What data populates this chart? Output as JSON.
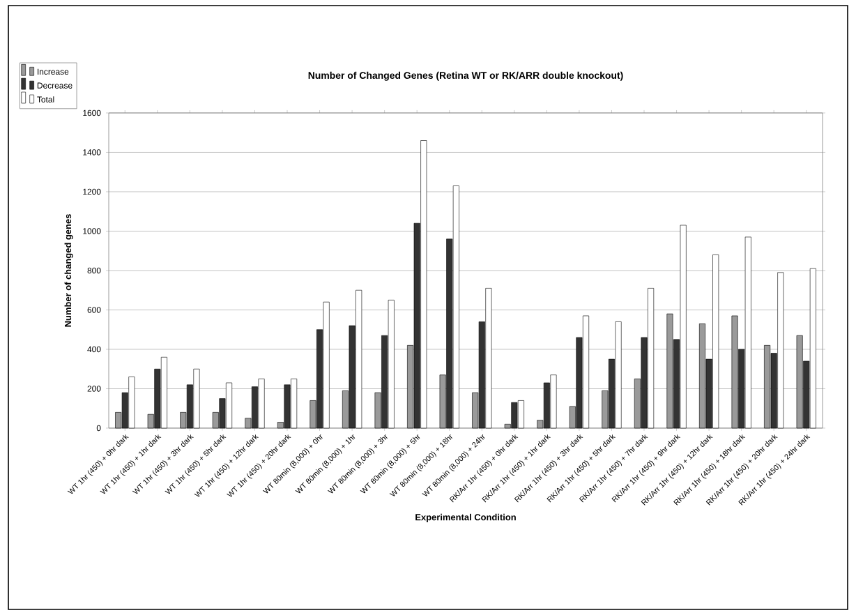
{
  "chart_data": {
    "type": "bar",
    "title": "Number of Changed Genes (Retina WT or RK/ARR double knockout)",
    "xlabel": "Experimental Condition",
    "ylabel": "Number of changed genes",
    "categories": [
      "WT 1hr (450) + 0hr dark",
      "WT 1hr (450) + 1hr dark",
      "WT 1hr (450) + 3hr dark",
      "WT 1hr (450) + 5hr dark",
      "WT 1hr (450) + 12hr dark",
      "WT 1hr (450) + 20hr dark",
      "WT 80min (8,000) + 0hr",
      "WT 80min (8,000) + 1hr",
      "WT 80min (8,000) + 3hr",
      "WT 80min (8,000) + 5hr",
      "WT 80min (8,000) + 18hr",
      "WT 80min (8,000) + 24hr",
      "RK/Arr 1hr (450) + 0hr dark",
      "RK/Arr 1hr (450) + 1hr dark",
      "RK/Arr 1hr (450) + 3hr dark",
      "RK/Arr 1hr (450) + 5hr dark",
      "RK/Arr 1hr (450) + 7hr dark",
      "RK/Arr 1hr (450) + 9hr dark",
      "RK/Arr 1hr (450) + 12hr dark",
      "RK/Arr 1hr (450) + 18hr dark",
      "RK/Arr 1hr (450) + 20hr dark",
      "RK/Arr 1hr (450) + 24hr dark"
    ],
    "series": [
      {
        "name": "Increase",
        "color": "#9a9a9a",
        "values": [
          80,
          70,
          80,
          80,
          50,
          30,
          140,
          190,
          180,
          420,
          270,
          180,
          20,
          40,
          110,
          190,
          250,
          580,
          530,
          570,
          420,
          470
        ]
      },
      {
        "name": "Decrease",
        "color": "#333333",
        "values": [
          180,
          300,
          220,
          150,
          210,
          220,
          500,
          520,
          470,
          1040,
          960,
          540,
          130,
          230,
          460,
          350,
          460,
          450,
          350,
          400,
          380,
          340
        ]
      },
      {
        "name": "Total",
        "color": "#ffffff",
        "values": [
          260,
          360,
          300,
          230,
          250,
          250,
          640,
          700,
          650,
          1460,
          1230,
          710,
          140,
          270,
          570,
          540,
          710,
          1030,
          880,
          970,
          790,
          810
        ]
      }
    ],
    "ylim": [
      0,
      1600
    ],
    "yticks": [
      0,
      200,
      400,
      600,
      800,
      1000,
      1200,
      1400,
      1600
    ],
    "grid": "y",
    "legend": "top left"
  }
}
